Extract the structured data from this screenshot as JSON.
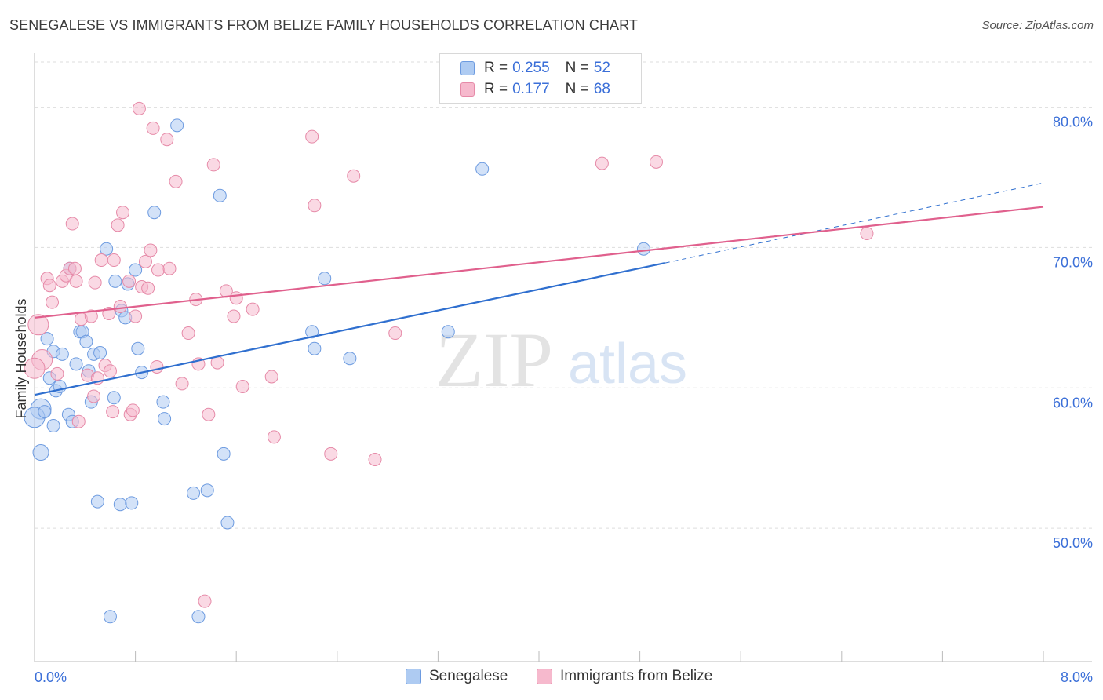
{
  "header": {
    "title": "SENEGALESE VS IMMIGRANTS FROM BELIZE FAMILY HOUSEHOLDS CORRELATION CHART",
    "source": "Source: ZipAtlas.com"
  },
  "watermark": {
    "zip": "ZIP",
    "atlas": "atlas"
  },
  "legend": {
    "r_label": "R =",
    "n_label": "N =",
    "series": [
      {
        "name": "Senegalese",
        "r": "0.255",
        "n": "52"
      },
      {
        "name": "Immigrants from Belize",
        "r": "0.177",
        "n": "68"
      }
    ]
  },
  "colors": {
    "blue_fill": "#aecbf2",
    "blue_stroke": "#6d9be0",
    "blue_line": "#2f6fcf",
    "pink_fill": "#f6b9cd",
    "pink_stroke": "#e68aa8",
    "pink_line": "#e0608d",
    "axis_text": "#3b6fd8",
    "grid": "#dddddd"
  },
  "chart_data": {
    "type": "scatter",
    "title": "SENEGALESE VS IMMIGRANTS FROM BELIZE FAMILY HOUSEHOLDS CORRELATION CHART",
    "xlabel": "",
    "ylabel": "Family Households",
    "xlim": [
      0,
      8
    ],
    "ylim": [
      40.5,
      83.5
    ],
    "x_tick_labels": [
      {
        "value": 0,
        "label": "0.0%"
      },
      {
        "value": 8,
        "label": "8.0%"
      }
    ],
    "x_minor_ticks": [
      0.8,
      1.6,
      2.4,
      3.2,
      4.0,
      4.8,
      5.6,
      6.4,
      7.2
    ],
    "y_ticks": [
      {
        "value": 50,
        "label": "50.0%"
      },
      {
        "value": 60,
        "label": "60.0%"
      },
      {
        "value": 70,
        "label": "70.0%"
      },
      {
        "value": 80,
        "label": "80.0%"
      }
    ],
    "series": [
      {
        "name": "Senegalese",
        "color": "blue",
        "trend": {
          "x0": 0,
          "y0": 59.5,
          "x1": 5.0,
          "y1": 68.9,
          "dash_to_x": 8.0,
          "dash_to_y": 74.6
        },
        "points": [
          [
            0.05,
            58.5,
            "l"
          ],
          [
            0.0,
            57.9,
            "l"
          ],
          [
            0.05,
            55.4,
            "m"
          ],
          [
            0.12,
            60.7,
            "s"
          ],
          [
            0.1,
            63.5,
            "s"
          ],
          [
            0.15,
            62.6,
            "s"
          ],
          [
            0.17,
            59.8,
            "s"
          ],
          [
            0.2,
            60.1,
            "s"
          ],
          [
            0.22,
            62.4,
            "s"
          ],
          [
            0.15,
            57.3,
            "s"
          ],
          [
            0.27,
            58.1,
            "s"
          ],
          [
            0.3,
            57.6,
            "s"
          ],
          [
            0.33,
            61.7,
            "s"
          ],
          [
            0.36,
            64.0,
            "s"
          ],
          [
            0.38,
            64.0,
            "s"
          ],
          [
            0.41,
            63.3,
            "s"
          ],
          [
            0.43,
            61.2,
            "s"
          ],
          [
            0.45,
            59.0,
            "s"
          ],
          [
            0.47,
            62.4,
            "s"
          ],
          [
            0.52,
            62.5,
            "s"
          ],
          [
            0.57,
            69.9,
            "s"
          ],
          [
            0.63,
            59.3,
            "s"
          ],
          [
            0.64,
            67.6,
            "s"
          ],
          [
            0.69,
            65.5,
            "s"
          ],
          [
            0.72,
            65.0,
            "s"
          ],
          [
            0.74,
            67.4,
            "s"
          ],
          [
            0.8,
            68.4,
            "s"
          ],
          [
            0.82,
            62.8,
            "s"
          ],
          [
            0.85,
            61.1,
            "s"
          ],
          [
            0.95,
            72.5,
            "s"
          ],
          [
            1.02,
            59.0,
            "s"
          ],
          [
            1.03,
            57.8,
            "s"
          ],
          [
            1.13,
            78.7,
            "s"
          ],
          [
            0.5,
            51.9,
            "s"
          ],
          [
            0.68,
            51.7,
            "s"
          ],
          [
            0.77,
            51.8,
            "s"
          ],
          [
            1.26,
            52.5,
            "s"
          ],
          [
            1.37,
            52.7,
            "s"
          ],
          [
            1.53,
            50.4,
            "s"
          ],
          [
            1.5,
            55.3,
            "s"
          ],
          [
            1.47,
            73.7,
            "s"
          ],
          [
            0.6,
            43.7,
            "s"
          ],
          [
            1.3,
            43.7,
            "s"
          ],
          [
            2.2,
            64.0,
            "s"
          ],
          [
            2.22,
            62.8,
            "s"
          ],
          [
            2.3,
            67.8,
            "s"
          ],
          [
            2.5,
            62.1,
            "s"
          ],
          [
            3.28,
            64.0,
            "s"
          ],
          [
            3.55,
            75.6,
            "s"
          ],
          [
            4.83,
            69.9,
            "s"
          ],
          [
            0.28,
            68.5,
            "s"
          ],
          [
            0.08,
            58.3,
            "s"
          ]
        ]
      },
      {
        "name": "Immigrants from Belize",
        "color": "pink",
        "trend": {
          "x0": 0,
          "y0": 65.0,
          "x1": 8.0,
          "y1": 72.9
        },
        "points": [
          [
            0.03,
            64.5,
            "l"
          ],
          [
            0.06,
            62.0,
            "l"
          ],
          [
            0.0,
            61.4,
            "l"
          ],
          [
            0.1,
            67.8,
            "s"
          ],
          [
            0.12,
            67.3,
            "s"
          ],
          [
            0.14,
            66.1,
            "s"
          ],
          [
            0.18,
            61.0,
            "s"
          ],
          [
            0.22,
            67.6,
            "s"
          ],
          [
            0.25,
            68.0,
            "s"
          ],
          [
            0.28,
            68.5,
            "s"
          ],
          [
            0.3,
            71.7,
            "s"
          ],
          [
            0.32,
            68.5,
            "s"
          ],
          [
            0.33,
            67.6,
            "s"
          ],
          [
            0.35,
            57.6,
            "s"
          ],
          [
            0.37,
            64.9,
            "s"
          ],
          [
            0.42,
            60.9,
            "s"
          ],
          [
            0.45,
            65.1,
            "s"
          ],
          [
            0.47,
            59.4,
            "s"
          ],
          [
            0.48,
            67.5,
            "s"
          ],
          [
            0.5,
            60.7,
            "s"
          ],
          [
            0.53,
            69.1,
            "s"
          ],
          [
            0.56,
            61.6,
            "s"
          ],
          [
            0.59,
            65.3,
            "s"
          ],
          [
            0.6,
            61.2,
            "s"
          ],
          [
            0.62,
            58.3,
            "s"
          ],
          [
            0.63,
            69.1,
            "s"
          ],
          [
            0.66,
            71.6,
            "s"
          ],
          [
            0.68,
            65.8,
            "s"
          ],
          [
            0.7,
            72.5,
            "s"
          ],
          [
            0.75,
            67.6,
            "s"
          ],
          [
            0.76,
            58.1,
            "s"
          ],
          [
            0.78,
            58.4,
            "s"
          ],
          [
            0.8,
            65.1,
            "s"
          ],
          [
            0.85,
            67.2,
            "s"
          ],
          [
            0.88,
            69.0,
            "s"
          ],
          [
            0.9,
            67.1,
            "s"
          ],
          [
            0.92,
            69.8,
            "s"
          ],
          [
            0.94,
            78.5,
            "s"
          ],
          [
            0.97,
            61.5,
            "s"
          ],
          [
            0.98,
            68.4,
            "s"
          ],
          [
            1.05,
            77.7,
            "s"
          ],
          [
            1.07,
            68.5,
            "s"
          ],
          [
            1.12,
            74.7,
            "s"
          ],
          [
            1.17,
            60.3,
            "s"
          ],
          [
            1.22,
            63.9,
            "s"
          ],
          [
            1.28,
            66.3,
            "s"
          ],
          [
            1.3,
            61.7,
            "s"
          ],
          [
            1.38,
            58.1,
            "s"
          ],
          [
            1.42,
            75.9,
            "s"
          ],
          [
            1.45,
            61.8,
            "s"
          ],
          [
            1.52,
            66.9,
            "s"
          ],
          [
            1.58,
            65.1,
            "s"
          ],
          [
            1.6,
            66.4,
            "s"
          ],
          [
            1.65,
            60.1,
            "s"
          ],
          [
            1.73,
            65.6,
            "s"
          ],
          [
            1.88,
            60.8,
            "s"
          ],
          [
            1.9,
            56.5,
            "s"
          ],
          [
            2.2,
            77.9,
            "s"
          ],
          [
            2.22,
            73.0,
            "s"
          ],
          [
            2.35,
            55.3,
            "s"
          ],
          [
            2.53,
            75.1,
            "s"
          ],
          [
            2.7,
            54.9,
            "s"
          ],
          [
            2.86,
            63.9,
            "s"
          ],
          [
            0.83,
            79.9,
            "s"
          ],
          [
            1.35,
            44.8,
            "s"
          ],
          [
            4.5,
            76.0,
            "s"
          ],
          [
            4.93,
            76.1,
            "s"
          ],
          [
            6.6,
            71.0,
            "s"
          ]
        ]
      }
    ]
  }
}
